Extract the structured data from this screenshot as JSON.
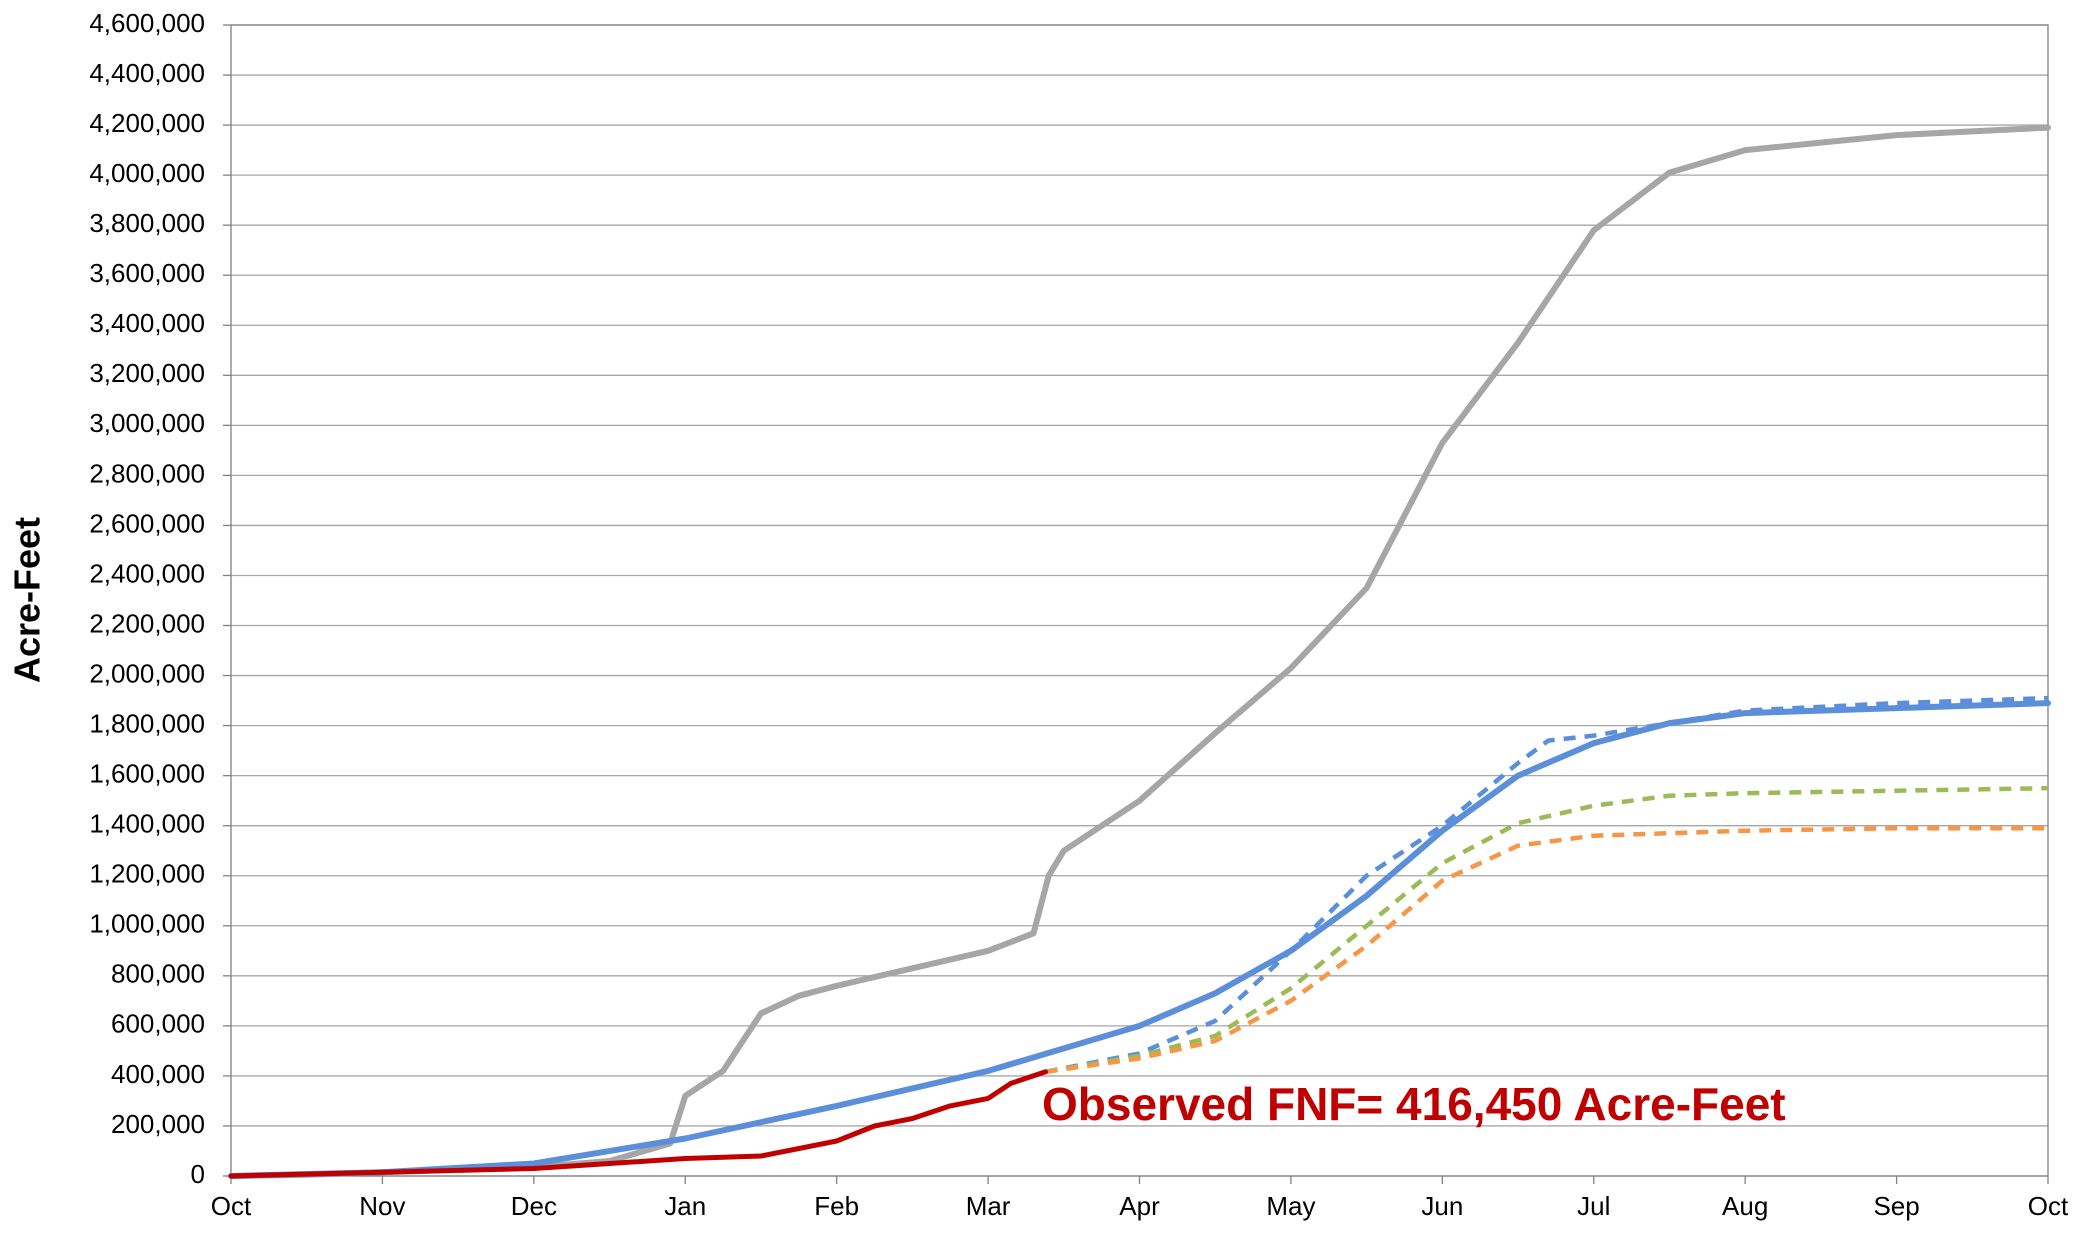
{
  "chart_data": {
    "type": "line",
    "ylabel": "Acre-Feet",
    "annotation": "Observed FNF= 416,450 Acre-Feet",
    "annotation_color": "#c00000",
    "xlim": [
      0,
      12
    ],
    "xticks": [
      {
        "value": 0,
        "label": "Oct"
      },
      {
        "value": 1,
        "label": "Nov"
      },
      {
        "value": 2,
        "label": "Dec"
      },
      {
        "value": 3,
        "label": "Jan"
      },
      {
        "value": 4,
        "label": "Feb"
      },
      {
        "value": 5,
        "label": "Mar"
      },
      {
        "value": 6,
        "label": "Apr"
      },
      {
        "value": 7,
        "label": "May"
      },
      {
        "value": 8,
        "label": "Jun"
      },
      {
        "value": 9,
        "label": "Jul"
      },
      {
        "value": 10,
        "label": "Aug"
      },
      {
        "value": 11,
        "label": "Sep"
      },
      {
        "value": 12,
        "label": "Oct"
      }
    ],
    "ylim": [
      0,
      4600000
    ],
    "yticks": [
      0,
      {
        "value": 200000,
        "label": "200,000"
      },
      {
        "value": 400000,
        "label": "400,000"
      },
      {
        "value": 600000,
        "label": "600,000"
      },
      {
        "value": 800000,
        "label": "800,000"
      },
      {
        "value": 1000000,
        "label": "1,000,000"
      },
      {
        "value": 1200000,
        "label": "1,200,000"
      },
      {
        "value": 1400000,
        "label": "1,400,000"
      },
      {
        "value": 1600000,
        "label": "1,600,000"
      },
      {
        "value": 1800000,
        "label": "1,800,000"
      },
      {
        "value": 2000000,
        "label": "2,000,000"
      },
      {
        "value": 2200000,
        "label": "2,200,000"
      },
      {
        "value": 2400000,
        "label": "2,400,000"
      },
      {
        "value": 2600000,
        "label": "2,600,000"
      },
      {
        "value": 2800000,
        "label": "2,800,000"
      },
      {
        "value": 3000000,
        "label": "3,000,000"
      },
      {
        "value": 3200000,
        "label": "3,200,000"
      },
      {
        "value": 3400000,
        "label": "3,400,000"
      },
      {
        "value": 3600000,
        "label": "3,600,000"
      },
      {
        "value": 3800000,
        "label": "3,800,000"
      },
      {
        "value": 4000000,
        "label": "4,000,000"
      },
      {
        "value": 4200000,
        "label": "4,200,000"
      },
      {
        "value": 4400000,
        "label": "4,400,000"
      },
      {
        "value": 4600000,
        "label": "4,600,000"
      }
    ],
    "grid": true,
    "series": [
      {
        "color": "#a6a6a6",
        "dashed": false,
        "width": 6,
        "x": [
          0,
          0.5,
          1,
          1.5,
          2,
          2.5,
          2.9,
          3.0,
          3.25,
          3.5,
          3.75,
          4,
          4.5,
          5,
          5.3,
          5.4,
          5.5,
          6,
          6.5,
          7,
          7.5,
          8,
          8.5,
          9,
          9.5,
          10,
          11,
          12
        ],
        "values": [
          0,
          5000,
          15000,
          25000,
          35000,
          60000,
          130000,
          320000,
          420000,
          650000,
          720000,
          760000,
          830000,
          900000,
          970000,
          1200000,
          1300000,
          1500000,
          1770000,
          2030000,
          2350000,
          2930000,
          3330000,
          3780000,
          4010000,
          4100000,
          4160000,
          4190000
        ]
      },
      {
        "color": "#5b8fd9",
        "dashed": false,
        "width": 6,
        "x": [
          0,
          1,
          2,
          3,
          4,
          5,
          6,
          6.5,
          7,
          7.5,
          8,
          8.5,
          9,
          9.5,
          10,
          11,
          12
        ],
        "values": [
          0,
          15000,
          50000,
          150000,
          280000,
          420000,
          600000,
          730000,
          900000,
          1120000,
          1380000,
          1600000,
          1730000,
          1810000,
          1850000,
          1870000,
          1890000
        ]
      },
      {
        "color": "#5b8fd9",
        "dashed": true,
        "width": 4.5,
        "x": [
          5.38,
          6,
          6.5,
          7,
          7.5,
          8,
          8.5,
          8.7,
          9,
          10,
          11,
          12
        ],
        "values": [
          416450,
          490000,
          620000,
          900000,
          1200000,
          1400000,
          1650000,
          1740000,
          1760000,
          1860000,
          1890000,
          1910000
        ]
      },
      {
        "color": "#9bbb59",
        "dashed": true,
        "width": 4.5,
        "x": [
          5.38,
          6,
          6.5,
          7,
          7.5,
          8,
          8.5,
          9,
          9.5,
          10,
          11,
          12
        ],
        "values": [
          416450,
          480000,
          560000,
          750000,
          1000000,
          1250000,
          1410000,
          1480000,
          1520000,
          1530000,
          1540000,
          1550000
        ]
      },
      {
        "color": "#f79646",
        "dashed": true,
        "width": 4.5,
        "x": [
          5.38,
          6,
          6.5,
          7,
          7.5,
          8,
          8.5,
          9,
          10,
          11,
          12
        ],
        "values": [
          416450,
          470000,
          540000,
          700000,
          920000,
          1180000,
          1320000,
          1360000,
          1380000,
          1390000,
          1390000
        ]
      },
      {
        "color": "#c00000",
        "dashed": false,
        "width": 5,
        "x": [
          0,
          1,
          2,
          2.5,
          3,
          3.5,
          4,
          4.25,
          4.5,
          4.75,
          5,
          5.15,
          5.38
        ],
        "values": [
          0,
          15000,
          30000,
          50000,
          70000,
          80000,
          140000,
          200000,
          230000,
          280000,
          310000,
          370000,
          416450
        ]
      }
    ]
  }
}
